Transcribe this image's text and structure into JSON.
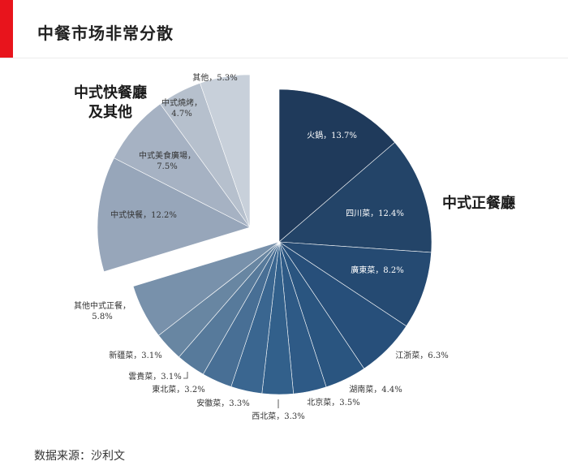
{
  "title": "中餐市场非常分散",
  "source": "数据来源：沙利文",
  "chart_data": {
    "type": "pie",
    "unit": "%",
    "groups": [
      {
        "name": "中式正餐廳",
        "exploded": false
      },
      {
        "name_lines": [
          "中式快餐廳",
          "及其他"
        ],
        "exploded": true
      }
    ],
    "slices": [
      {
        "label": "火鍋，13.7%",
        "value": 13.7,
        "group": 0,
        "color": "#1f3a5b"
      },
      {
        "label": "四川菜，12.4%",
        "value": 12.4,
        "group": 0,
        "color": "#234468"
      },
      {
        "label": "廣東菜，8.2%",
        "value": 8.2,
        "group": 0,
        "color": "#254a72"
      },
      {
        "label": "江浙菜，6.3%",
        "value": 6.3,
        "group": 0,
        "color": "#274f7a"
      },
      {
        "label": "湖南菜，4.4%",
        "value": 4.4,
        "group": 0,
        "color": "#2a5580"
      },
      {
        "label": "北京菜，3.5%",
        "value": 3.5,
        "group": 0,
        "color": "#2e5a86"
      },
      {
        "label": "西北菜，3.3%",
        "value": 3.3,
        "group": 0,
        "color": "#32608b"
      },
      {
        "label": "安徽菜，3.3%",
        "value": 3.3,
        "group": 0,
        "color": "#3a6690"
      },
      {
        "label": "東北菜，3.2%",
        "value": 3.2,
        "group": 0,
        "color": "#486f95"
      },
      {
        "label": "雲貴菜，3.1%",
        "value": 3.1,
        "group": 0,
        "color": "#577a9b"
      },
      {
        "label": "新疆菜，3.1%",
        "value": 3.1,
        "group": 0,
        "color": "#6886a2"
      },
      {
        "label_lines": [
          "其他中式正餐，",
          "5.8%"
        ],
        "value": 5.8,
        "group": 0,
        "color": "#7891ab"
      },
      {
        "label": "中式快餐，12.2%",
        "value": 12.2,
        "group": 1,
        "color": "#97a6ba"
      },
      {
        "label_lines": [
          "中式美食廣場，",
          "7.5%"
        ],
        "value": 7.5,
        "group": 1,
        "color": "#a6b2c3"
      },
      {
        "label_lines": [
          "中式燒烤，",
          "4.7%"
        ],
        "value": 4.7,
        "group": 1,
        "color": "#b6c0cd"
      },
      {
        "label": "其他，5.3%",
        "value": 5.3,
        "group": 1,
        "color": "#c8d0da"
      }
    ]
  }
}
